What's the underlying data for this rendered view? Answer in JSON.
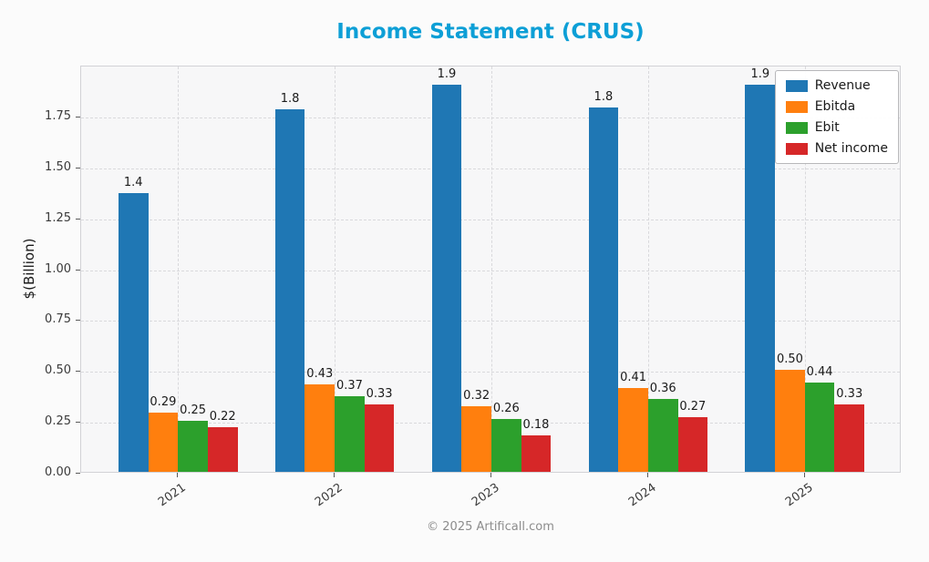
{
  "title": "Income Statement (CRUS)",
  "footer": "© 2025 Artificall.com",
  "colors": {
    "title": "#0d9fd6",
    "plot_bg": "#f7f7f8",
    "grid": "#d9d9dc"
  },
  "y_axis": {
    "label": "$(Billion)",
    "ticks": [
      "0.00",
      "0.25",
      "0.50",
      "0.75",
      "1.00",
      "1.25",
      "1.50",
      "1.75"
    ],
    "max": 2.0
  },
  "chart_data": {
    "type": "bar",
    "title": "Income Statement (CRUS)",
    "xlabel": "",
    "ylabel": "$(Billion)",
    "categories": [
      "2021",
      "2022",
      "2023",
      "2024",
      "2025"
    ],
    "ylim": [
      0,
      2.0
    ],
    "grid": true,
    "legend_position": "upper right",
    "series": [
      {
        "name": "Revenue",
        "color": "#1f77b4",
        "values": [
          1.37,
          1.78,
          1.9,
          1.79,
          1.9
        ],
        "labels": [
          "1.4",
          "1.8",
          "1.9",
          "1.8",
          "1.9"
        ]
      },
      {
        "name": "Ebitda",
        "color": "#ff7f0e",
        "values": [
          0.29,
          0.43,
          0.32,
          0.41,
          0.5
        ],
        "labels": [
          "0.29",
          "0.43",
          "0.32",
          "0.41",
          "0.50"
        ]
      },
      {
        "name": "Ebit",
        "color": "#2ca02c",
        "values": [
          0.25,
          0.37,
          0.26,
          0.36,
          0.44
        ],
        "labels": [
          "0.25",
          "0.37",
          "0.26",
          "0.36",
          "0.44"
        ]
      },
      {
        "name": "Net income",
        "color": "#d62728",
        "values": [
          0.22,
          0.33,
          0.18,
          0.27,
          0.33
        ],
        "labels": [
          "0.22",
          "0.33",
          "0.18",
          "0.27",
          "0.33"
        ]
      }
    ]
  }
}
